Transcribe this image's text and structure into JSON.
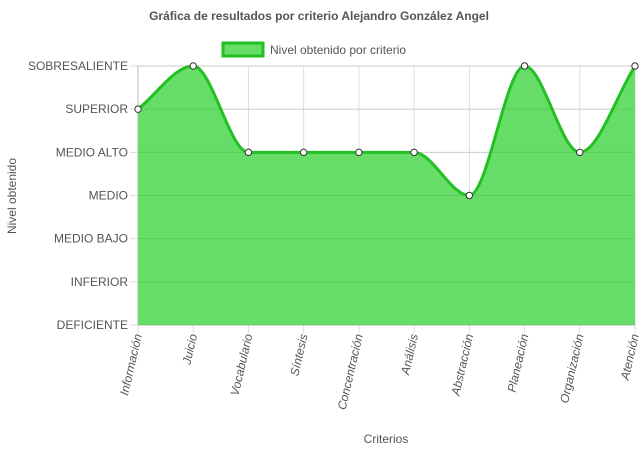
{
  "chart_data": {
    "type": "area",
    "title": "Gráfica de resultados por criterio Alejandro González Angel",
    "xlabel": "Criterios",
    "ylabel": "Nivel obtenido",
    "categories": [
      "Información",
      "Juicio",
      "Vocabulario",
      "Síntesis",
      "Concentración",
      "Análisis",
      "Abstracción",
      "Planeación",
      "Organización",
      "Atención"
    ],
    "y_levels": [
      "DEFICIENTE",
      "INFERIOR",
      "MEDIO BAJO",
      "MEDIO",
      "MEDIO ALTO",
      "SUPERIOR",
      "SOBRESALIENTE"
    ],
    "ylim": [
      0,
      6
    ],
    "series": [
      {
        "name": "Nivel obtenido por criterio",
        "values": [
          5,
          6,
          4,
          4,
          4,
          4,
          3,
          6,
          4,
          6
        ],
        "value_labels": [
          "SUPERIOR",
          "SOBRESALIENTE",
          "MEDIO ALTO",
          "MEDIO ALTO",
          "MEDIO ALTO",
          "MEDIO ALTO",
          "MEDIO",
          "SOBRESALIENTE",
          "MEDIO ALTO",
          "SOBRESALIENTE"
        ]
      }
    ],
    "legend_position": "top",
    "grid": true,
    "colors": {
      "fill": "#66dd66",
      "line": "#22c022",
      "point_fill": "#ffffff",
      "point_stroke": "#333333",
      "grid": "#dddddd",
      "text": "#555555"
    }
  }
}
